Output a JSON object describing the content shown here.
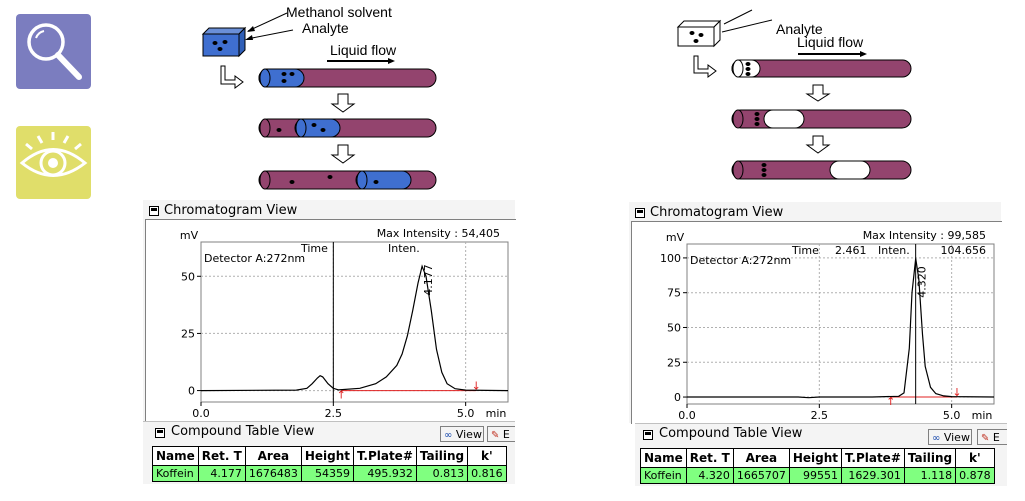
{
  "diagram_left": {
    "label_methanol": "Methanol solvent",
    "label_analyte": "Analyte",
    "label_flow": "Liquid flow"
  },
  "diagram_right": {
    "label_analyte": "Analyte",
    "label_flow": "Liquid flow"
  },
  "left_panel": {
    "title": "Chromatogram View",
    "y_unit": "mV",
    "x_unit": "min",
    "max_intensity": "Max Intensity :  54,405",
    "time_label": "Time",
    "inten_label": "Inten.",
    "detector": "Detector A:272nm",
    "peak_label": "4.177",
    "table_title": "Compound Table View",
    "view_btn": "View",
    "edit_btn": "E",
    "columns": [
      "Name",
      "Ret. T",
      "Area",
      "Height",
      "T.Plate#",
      "Tailing",
      "k'"
    ],
    "row": [
      "Koffein",
      "4.177",
      "1676483",
      "54359",
      "495.932",
      "0.813",
      "0.816"
    ]
  },
  "right_panel": {
    "title": "Chromatogram View",
    "y_unit": "mV",
    "x_unit": "min",
    "max_intensity": "Max Intensity :  99,585",
    "time_label": "Time",
    "time_value": "2.461",
    "inten_label": "Inten.",
    "inten_value": "104.656",
    "detector": "Detector A:272nm",
    "peak_label": "4.320",
    "table_title": "Compound Table View",
    "view_btn": "View",
    "edit_btn": "E",
    "columns": [
      "Name",
      "Ret. T",
      "Area",
      "Height",
      "T.Plate#",
      "Tailing",
      "k'"
    ],
    "row": [
      "Koffein",
      "4.320",
      "1665707",
      "99551",
      "1629.301",
      "1.118",
      "0.878"
    ]
  },
  "chart_data": [
    {
      "type": "line",
      "xlabel": "min",
      "ylabel": "mV",
      "xlim": [
        0,
        5.8
      ],
      "ylim": [
        -5,
        65
      ],
      "x_ticks": [
        0.0,
        2.5,
        5.0
      ],
      "x_tick_labels": [
        "0.0",
        "2.5",
        "5.0"
      ],
      "y_ticks": [
        0,
        25,
        50
      ],
      "y_tick_labels": [
        "0",
        "25",
        "50"
      ],
      "grid": true,
      "cursor_x": 2.5,
      "peak_marker_x": 4.177,
      "baseline_start": 2.65,
      "baseline_end": 5.2,
      "series": [
        {
          "x": [
            0.0,
            1.8,
            2.0,
            2.1,
            2.2,
            2.25,
            2.3,
            2.4,
            2.5,
            2.6,
            3.0,
            3.3,
            3.5,
            3.7,
            3.8,
            3.9,
            4.0,
            4.1,
            4.177,
            4.25,
            4.35,
            4.45,
            4.55,
            4.65,
            4.8,
            5.0,
            5.8
          ],
          "y": [
            0.0,
            0.2,
            1.0,
            3.0,
            5.5,
            6.5,
            6.0,
            3.0,
            1.0,
            0.3,
            1.0,
            3.0,
            6.0,
            11.0,
            16.0,
            24.0,
            35.0,
            47.0,
            54.4,
            50.0,
            35.0,
            18.0,
            8.0,
            3.0,
            0.8,
            0.2,
            0.0
          ]
        }
      ]
    },
    {
      "type": "line",
      "xlabel": "min",
      "ylabel": "mV",
      "xlim": [
        0,
        5.8
      ],
      "ylim": [
        -5,
        110
      ],
      "x_ticks": [
        0.0,
        2.5,
        5.0
      ],
      "x_tick_labels": [
        "0.0",
        "2.5",
        "5.0"
      ],
      "y_ticks": [
        0,
        25,
        50,
        75,
        100
      ],
      "y_tick_labels": [
        "0",
        "25",
        "50",
        "75",
        "100"
      ],
      "grid": true,
      "cursor_x": 4.32,
      "peak_marker_x": 4.32,
      "baseline_start": 3.85,
      "baseline_end": 5.1,
      "series": [
        {
          "x": [
            0.0,
            2.1,
            2.3,
            2.5,
            3.5,
            4.0,
            4.1,
            4.2,
            4.25,
            4.32,
            4.38,
            4.45,
            4.5,
            4.6,
            4.7,
            4.85,
            5.0,
            5.8
          ],
          "y": [
            0.0,
            0.0,
            -0.5,
            0.0,
            0.0,
            0.5,
            3.0,
            35.0,
            75.0,
            99.6,
            85.0,
            45.0,
            22.0,
            7.0,
            2.5,
            0.8,
            0.3,
            0.0
          ]
        }
      ]
    }
  ]
}
